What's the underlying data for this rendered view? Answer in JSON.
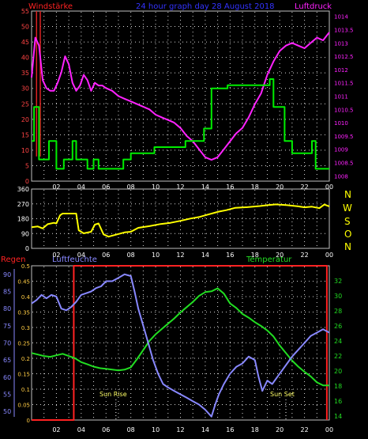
{
  "header": {
    "left_label": "Windstärke",
    "title": "24 hour graph day  28 August 2018",
    "right_label": "Luftdruck"
  },
  "compass_labels": [
    "N",
    "W",
    "S",
    "O",
    "N"
  ],
  "bottom_labels": {
    "rain": "Regen",
    "humidity": "Luftfeuchte",
    "temperature": "Temperatur",
    "sunrise": "Sun Rise",
    "sunset": "Sun Set"
  },
  "colors": {
    "frame": "#c0c0c0",
    "grid_dot": "#ffffff",
    "wind_speed": "#00ee00",
    "pressure": "#ff22ff",
    "gust_bar": "#dd2222",
    "direction": "#ffff00",
    "rain": "#ff2222",
    "humidity": "#8888ff",
    "temperature": "#22dd22",
    "title_blue": "#3333ff",
    "left_label_red": "#ff2222",
    "pressure_label": "#ff22ff"
  },
  "chart_data": [
    {
      "type": "line",
      "title": "24 hour graph day  28 August 2018",
      "x_ticks": [
        "02",
        "04",
        "06",
        "08",
        "10",
        "12",
        "14",
        "16",
        "18",
        "20",
        "22",
        "00"
      ],
      "x_range_hours": [
        0,
        24
      ],
      "y_left": {
        "label": "Windstärke",
        "ticks": [
          0,
          5,
          10,
          15,
          20,
          25,
          30,
          35,
          40,
          45,
          50,
          55
        ],
        "ylim": [
          0,
          55
        ]
      },
      "y_right": {
        "label": "Luftdruck",
        "ticks": [
          "1008",
          "1008.5",
          "1009",
          "1009.5",
          "1010",
          "1010.5",
          "1011",
          "1011.5",
          "1012",
          "1012.5",
          "1013",
          "1013.5",
          "1014"
        ],
        "ylim": [
          1007.8,
          1014.2
        ]
      },
      "series": [
        {
          "name": "Windstärke",
          "axis": "left",
          "x": [
            0,
            0.2,
            0.2,
            0.6,
            0.6,
            1.4,
            1.4,
            2.0,
            2.0,
            2.6,
            2.6,
            3.3,
            3.3,
            3.6,
            3.6,
            4.5,
            4.5,
            5.0,
            5.0,
            5.4,
            5.4,
            7.4,
            7.4,
            8.0,
            8.0,
            8.6,
            8.6,
            9.9,
            9.9,
            12.4,
            12.4,
            13.9,
            13.9,
            14.5,
            14.5,
            15.8,
            15.8,
            19.2,
            19.2,
            19.5,
            19.5,
            20.4,
            20.4,
            21.0,
            21.0,
            22.0,
            22.0,
            22.6,
            22.6,
            22.9,
            22.9,
            24.0
          ],
          "values": [
            13,
            13,
            24,
            24,
            7,
            7,
            13,
            13,
            4,
            4,
            7,
            7,
            13,
            13,
            7,
            7,
            4,
            4,
            7,
            7,
            4,
            4,
            7,
            7,
            9,
            9,
            9,
            9,
            11,
            11,
            13,
            13,
            17,
            17,
            30,
            30,
            31,
            31,
            33,
            33,
            24,
            24,
            13,
            13,
            9,
            9,
            9,
            9,
            13,
            13,
            4,
            4
          ]
        },
        {
          "name": "Luftdruck",
          "axis": "right",
          "x": [
            0,
            0.3,
            0.6,
            0.9,
            1.2,
            1.5,
            1.8,
            2.1,
            2.4,
            2.7,
            3.0,
            3.3,
            3.6,
            3.9,
            4.2,
            4.5,
            4.8,
            5.1,
            5.4,
            5.7,
            6.0,
            6.5,
            7.0,
            7.5,
            8.0,
            8.5,
            9.0,
            9.5,
            10.0,
            10.5,
            11.0,
            11.5,
            12.0,
            12.5,
            13.0,
            13.5,
            14.0,
            14.5,
            15.0,
            15.5,
            16.0,
            16.5,
            17.0,
            17.5,
            18.0,
            18.5,
            19.0,
            19.5,
            20.0,
            20.5,
            21.0,
            21.5,
            22.0,
            22.5,
            23.0,
            23.5,
            24.0
          ],
          "values": [
            1011.7,
            1013.2,
            1012.9,
            1011.6,
            1011.3,
            1011.2,
            1011.2,
            1011.5,
            1011.9,
            1012.5,
            1012.2,
            1011.5,
            1011.2,
            1011.4,
            1011.8,
            1011.6,
            1011.2,
            1011.5,
            1011.4,
            1011.4,
            1011.3,
            1011.2,
            1011.0,
            1010.9,
            1010.8,
            1010.7,
            1010.6,
            1010.5,
            1010.3,
            1010.2,
            1010.1,
            1010.0,
            1009.8,
            1009.5,
            1009.3,
            1009.0,
            1008.7,
            1008.6,
            1008.7,
            1009.0,
            1009.3,
            1009.6,
            1009.8,
            1010.2,
            1010.7,
            1011.1,
            1011.8,
            1012.3,
            1012.7,
            1012.9,
            1013.0,
            1012.9,
            1012.8,
            1013.0,
            1013.2,
            1013.1,
            1013.4
          ]
        },
        {
          "name": "Gust",
          "axis": "left",
          "type": "bar",
          "x": [
            0.4,
            0.7
          ],
          "values": [
            55,
            55
          ]
        }
      ]
    },
    {
      "type": "line",
      "x_ticks": [
        "02",
        "04",
        "06",
        "08",
        "10",
        "12",
        "14",
        "16",
        "18",
        "20",
        "22",
        "00"
      ],
      "x_range_hours": [
        0,
        24
      ],
      "y_left": {
        "ticks": [
          0,
          90,
          180,
          270,
          360
        ],
        "ylim": [
          0,
          360
        ]
      },
      "series": [
        {
          "name": "Wind direction",
          "x": [
            0,
            0.5,
            0.9,
            1.3,
            1.8,
            2.0,
            2.3,
            2.5,
            3.0,
            3.6,
            3.8,
            4.2,
            4.8,
            5.1,
            5.4,
            5.8,
            6.2,
            6.8,
            7.5,
            8.0,
            8.6,
            9.5,
            10.4,
            11.2,
            12.0,
            12.8,
            13.5,
            14.2,
            15.1,
            15.7,
            16.4,
            17.4,
            18.4,
            19.0,
            19.7,
            20.6,
            21.5,
            22.0,
            22.6,
            23.2,
            23.6,
            24.0
          ],
          "values": [
            128,
            133,
            121,
            147,
            155,
            151,
            201,
            211,
            211,
            211,
            110,
            91,
            101,
            144,
            151,
            85,
            71,
            83,
            97,
            101,
            125,
            135,
            148,
            155,
            167,
            181,
            190,
            205,
            223,
            232,
            246,
            250,
            257,
            262,
            267,
            262,
            255,
            249,
            253,
            244,
            266,
            255
          ]
        }
      ]
    },
    {
      "type": "line",
      "x_ticks": [
        "02",
        "04",
        "06",
        "08",
        "10",
        "12",
        "14",
        "16",
        "18",
        "20",
        "22",
        "00"
      ],
      "x_range_hours": [
        0,
        24
      ],
      "y_rain": {
        "label": "Regen",
        "ticks": [
          0,
          0.05,
          0.1,
          0.15,
          0.2,
          0.25,
          0.3,
          0.35,
          0.4,
          0.45,
          0.5
        ],
        "ylim": [
          0,
          0.5
        ]
      },
      "y_humidity": {
        "label": "Luftfeuchte",
        "ticks": [
          50,
          55,
          60,
          65,
          70,
          75,
          80,
          85,
          90
        ],
        "ylim": [
          47.5,
          92.5
        ]
      },
      "y_temperature": {
        "label": "Temperatur",
        "ticks": [
          14,
          16,
          18,
          20,
          22,
          24,
          26,
          28,
          30,
          32
        ],
        "ylim": [
          13.5,
          34
        ]
      },
      "annotations": [
        {
          "label": "Sun Rise",
          "x": 6.8
        },
        {
          "label": "Sun Set",
          "x": 20.5
        }
      ],
      "series": [
        {
          "name": "Regen",
          "x": [
            0,
            3.4,
            3.4,
            23.8,
            23.8
          ],
          "values": [
            0,
            0,
            0.5,
            0.5,
            0
          ]
        },
        {
          "name": "Luftfeuchte",
          "x": [
            0,
            0.4,
            0.8,
            1.2,
            1.6,
            2.0,
            2.4,
            2.8,
            3.2,
            3.6,
            4.0,
            4.4,
            4.8,
            5.2,
            5.6,
            6.0,
            6.5,
            7.0,
            7.5,
            8.0,
            8.3,
            8.6,
            9.0,
            9.4,
            9.8,
            10.2,
            10.6,
            11.0,
            11.5,
            12.0,
            12.5,
            13.0,
            13.5,
            14.0,
            14.5,
            14.8,
            15.1,
            15.5,
            16.0,
            16.5,
            17.0,
            17.5,
            18.0,
            18.3,
            18.6,
            19.0,
            19.4,
            19.8,
            20.2,
            20.6,
            21.0,
            21.5,
            22.0,
            22.5,
            23.0,
            23.5,
            24.0
          ],
          "values": [
            81.5,
            82.5,
            84,
            83,
            84,
            83.5,
            80,
            79.5,
            80.5,
            82,
            84,
            84.5,
            85,
            86,
            86.5,
            88,
            88,
            89,
            90,
            89.5,
            85,
            80,
            75,
            70,
            65,
            61,
            58,
            57,
            56,
            55,
            54,
            53,
            52,
            50.5,
            48.5,
            52,
            55,
            58,
            61,
            63,
            64,
            66,
            65,
            60,
            56,
            59,
            58,
            60,
            62,
            64,
            66,
            68,
            70,
            72,
            73,
            74,
            73
          ]
        },
        {
          "name": "Temperatur",
          "x": [
            0,
            0.5,
            1.0,
            1.5,
            2.0,
            2.5,
            3.0,
            3.5,
            4.0,
            4.5,
            5.0,
            5.5,
            6.0,
            6.5,
            7.0,
            7.5,
            8.0,
            8.5,
            9.0,
            9.5,
            10.0,
            10.5,
            11.0,
            11.5,
            12.0,
            12.5,
            13.0,
            13.5,
            14.0,
            14.5,
            15.0,
            15.5,
            16.0,
            16.5,
            17.0,
            17.5,
            18.0,
            18.5,
            19.0,
            19.5,
            20.0,
            20.5,
            21.0,
            21.5,
            22.0,
            22.5,
            23.0,
            23.5,
            24.0
          ],
          "values": [
            22.4,
            22.2,
            22.0,
            21.9,
            22.1,
            22.3,
            22.0,
            21.7,
            21.2,
            20.9,
            20.6,
            20.4,
            20.3,
            20.2,
            20.1,
            20.2,
            20.5,
            21.6,
            22.8,
            24.0,
            24.9,
            25.6,
            26.3,
            27.0,
            27.8,
            28.5,
            29.2,
            30.0,
            30.5,
            30.6,
            31.0,
            30.3,
            29.0,
            28.4,
            27.6,
            27.1,
            26.5,
            26.0,
            25.4,
            24.6,
            23.4,
            22.4,
            21.4,
            20.6,
            19.9,
            19.3,
            18.5,
            18.1,
            18.1
          ]
        }
      ]
    }
  ]
}
